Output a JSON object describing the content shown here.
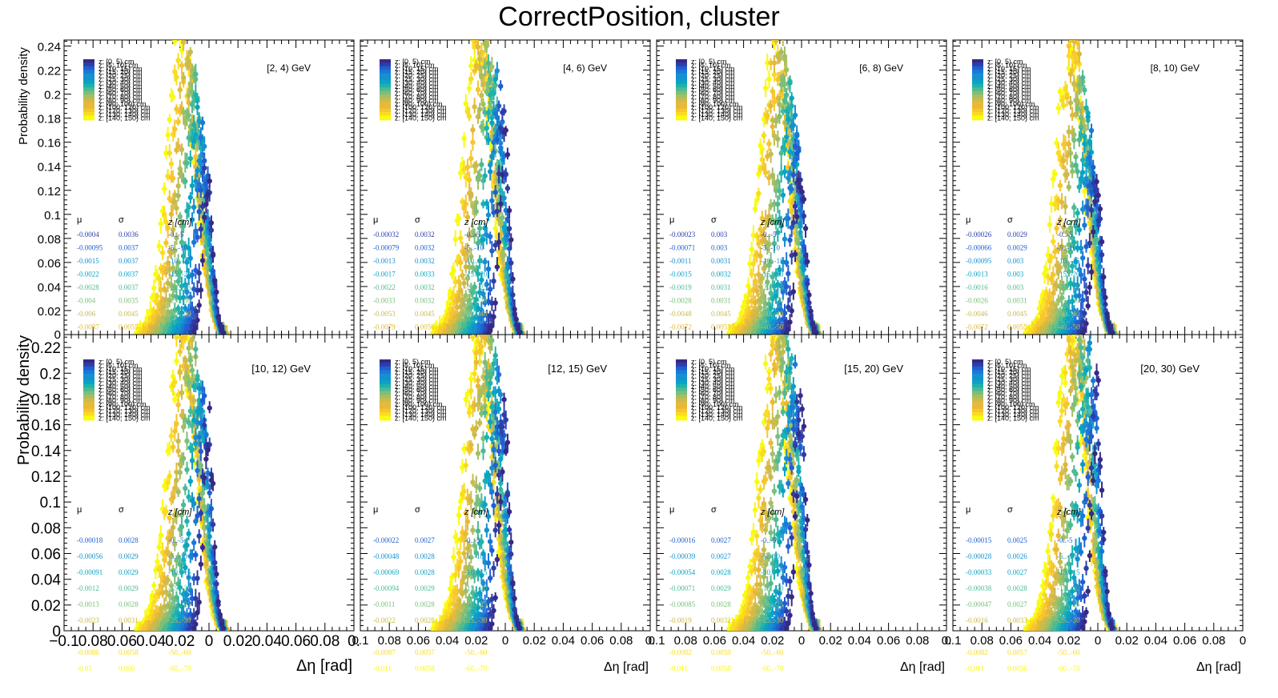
{
  "title": "CorrectPosition, cluster",
  "colors": {
    "palette": [
      "#352a87",
      "#2d3ea8",
      "#1f5fd0",
      "#1a78d8",
      "#1590d0",
      "#0aa4c3",
      "#1fb2ad",
      "#4dba93",
      "#7bbf7a",
      "#a5be63",
      "#c9bb4c",
      "#e5b93a",
      "#f6c62c",
      "#fadc1f",
      "#f9fb0e"
    ]
  },
  "legend": {
    "prefix": "z: ",
    "bins": [
      "[0, 5) cm",
      "[5, 10) cm",
      "[10, 15) cm",
      "[15, 20) cm",
      "[20, 25) cm",
      "[25, 30) cm",
      "[30, 40) cm",
      "[40, 50) cm",
      "[50, 60) cm",
      "[60, 70) cm",
      "[70, 80) cm",
      "[80, 90) cm",
      "[90, 100) cm",
      "[100, 120) cm",
      "[120, 130) cm",
      "[130, 140) cm",
      "[140, 150) cm"
    ]
  },
  "stats_header": {
    "mu": "μ",
    "sigma": "σ",
    "z": "z [cm]"
  },
  "chart_data": [
    {
      "type": "scatter",
      "energy": "[2, 4) GeV",
      "ylabel": "Probability density",
      "xlabel": "",
      "ylim": [
        0,
        0.245
      ],
      "yticks": [
        "0",
        "0.02",
        "0.04",
        "0.06",
        "0.08",
        "0.1",
        "0.12",
        "0.14",
        "0.16",
        "0.18",
        "0.2",
        "0.22",
        "0.24"
      ],
      "xlim": [
        -0.1,
        0.1
      ],
      "peak_x": -0.0004,
      "peak_y": 0.125,
      "max_y": 0.245,
      "stats": {
        "mu": [
          "-0.0004",
          "-0.00095",
          "-0.0015",
          "-0.0022",
          "-0.0028",
          "-0.004",
          "-0.006",
          "-0.0087"
        ],
        "sigma": [
          "0.0036",
          "0.0037",
          "0.0037",
          "0.0037",
          "0.0037",
          "0.0035",
          "0.0045",
          "0.0055"
        ],
        "z": [
          "-0..-5",
          "-5..-10",
          "-10..-15",
          "-15..-20",
          "-20..-25",
          "-25..-30",
          "-30..-40",
          ""
        ]
      }
    },
    {
      "type": "scatter",
      "energy": "[4, 6) GeV",
      "ylabel": "",
      "xlabel": "",
      "ylim": [
        0,
        0.245
      ],
      "xlim": [
        -0.1,
        0.1
      ],
      "peak_x": -0.00032,
      "peak_y": 0.17,
      "max_y": 0.245,
      "stats": {
        "mu": [
          "-0.00032",
          "-0.00079",
          "-0.0013",
          "-0.0017",
          "-0.0022",
          "-0.0033",
          "-0.0053",
          "-0.0079"
        ],
        "sigma": [
          "0.0032",
          "0.0032",
          "0.0032",
          "0.0033",
          "0.0032",
          "0.0032",
          "0.0045",
          "0.0056"
        ],
        "z": [
          "-0..-5",
          "-5..-10",
          "-10..-15",
          "-15..-20",
          "-20..-25",
          "-25..-30",
          "-30..-40",
          ""
        ]
      }
    },
    {
      "type": "scatter",
      "energy": "[6, 8) GeV",
      "ylabel": "",
      "xlabel": "",
      "ylim": [
        0,
        0.245
      ],
      "xlim": [
        -0.1,
        0.1
      ],
      "peak_x": -0.00023,
      "peak_y": 0.135,
      "max_y": 0.245,
      "stats": {
        "mu": [
          "-0.00023",
          "-0.00071",
          "-0.0011",
          "-0.0015",
          "-0.0019",
          "-0.0028",
          "-0.0048",
          "-0.0072"
        ],
        "sigma": [
          "0.003",
          "0.003",
          "0.0031",
          "0.0032",
          "0.0031",
          "0.0031",
          "0.0045",
          "0.0053"
        ],
        "z": [
          "-0..-5",
          "-5..-10",
          "-10..-15",
          "-15..-20",
          "-20..-25",
          "-25..-30",
          "-30..-40",
          "-40..-50"
        ]
      }
    },
    {
      "type": "scatter",
      "energy": "[8, 10) GeV",
      "ylabel": "",
      "xlabel": "",
      "ylim": [
        0,
        0.245
      ],
      "xlim": [
        -0.1,
        0.1
      ],
      "peak_x": -0.00026,
      "peak_y": 0.12,
      "max_y": 0.245,
      "stats": {
        "mu": [
          "-0.00026",
          "-0.00066",
          "-0.00095",
          "-0.0013",
          "-0.0016",
          "-0.0026",
          "-0.0046",
          "-0.0072"
        ],
        "sigma": [
          "0.0029",
          "0.0029",
          "0.003",
          "0.003",
          "0.003",
          "0.0031",
          "0.0045",
          "0.0055"
        ],
        "z": [
          "-0..-5",
          "-5..-10",
          "-10..-15",
          "-15..-20",
          "-20..-25",
          "-25..-30",
          "-30..-40",
          "-40..-50"
        ]
      }
    },
    {
      "type": "scatter",
      "energy": "[10, 12) GeV",
      "ylabel": "Probability density",
      "xlabel": "Δη  [rad]",
      "ylim": [
        0,
        0.23
      ],
      "yticks": [
        "0",
        "0.02",
        "0.04",
        "0.06",
        "0.08",
        "0.1",
        "0.12",
        "0.14",
        "0.16",
        "0.18",
        "0.2",
        "0.22"
      ],
      "xlim": [
        -0.1,
        0.1
      ],
      "xticks": [
        "−0.1",
        "0.08",
        "0.06",
        "0.04",
        "0.02",
        "0",
        "0.02",
        "0.04",
        "0.06",
        "0.08",
        "0."
      ],
      "peak_x": -0.00018,
      "peak_y": 0.155,
      "max_y": 0.23,
      "stats": {
        "mu": [
          "",
          "-0.00018",
          "-0.00056",
          "-0.00091",
          "-0.0012",
          "-0.0013",
          "-0.0023",
          "",
          "-0.0086",
          "-0.01"
        ],
        "sigma": [
          "",
          "0.0028",
          "0.0029",
          "0.0029",
          "0.0029",
          "0.0028",
          "0.0031",
          "",
          "0.0058",
          "0.006"
        ],
        "z": [
          "",
          "-0..-5",
          "-5..-10",
          "-10..-15",
          "-15..-20",
          "-20..-25",
          "-25..-30",
          "",
          "-50..-60",
          "-60..-70"
        ]
      }
    },
    {
      "type": "scatter",
      "energy": "[12, 15) GeV",
      "ylabel": "",
      "xlabel": "Δη  [rad]",
      "ylim": [
        0,
        0.23
      ],
      "xlim": [
        -0.1,
        0.1
      ],
      "xticks": [
        "0.1",
        "0.08",
        "0.06",
        "0.04",
        "0.02",
        "0",
        "0.02",
        "0.04",
        "0.06",
        "0.08",
        "0."
      ],
      "peak_x": -0.00022,
      "peak_y": 0.163,
      "max_y": 0.23,
      "stats": {
        "mu": [
          "",
          "-0.00022",
          "-0.00048",
          "-0.00069",
          "-0.00094",
          "-0.0011",
          "-0.0022",
          "",
          "-0.0087",
          "-0.011"
        ],
        "sigma": [
          "",
          "0.0027",
          "0.0028",
          "0.0028",
          "0.0029",
          "0.0028",
          "0.0028",
          "",
          "0.0057",
          "0.0058"
        ],
        "z": [
          "",
          "-0..-5",
          "-5..-10",
          "-10..-15",
          "-15..-20",
          "-20..-25",
          "-25..-30",
          "",
          "-50..-60",
          "-60..-70"
        ]
      }
    },
    {
      "type": "scatter",
      "energy": "[15, 20) GeV",
      "ylabel": "",
      "xlabel": "Δη  [rad]",
      "ylim": [
        0,
        0.23
      ],
      "xlim": [
        -0.1,
        0.1
      ],
      "xticks": [
        "0.1",
        "0.08",
        "0.06",
        "0.04",
        "0.02",
        "0",
        "0.02",
        "0.04",
        "0.06",
        "0.08",
        "0."
      ],
      "peak_x": -0.00016,
      "peak_y": 0.17,
      "max_y": 0.23,
      "stats": {
        "mu": [
          "",
          "-0.00016",
          "-0.00039",
          "-0.00054",
          "-0.00071",
          "-0.00085",
          "-0.0019",
          "",
          "-0.0082",
          "-0.011"
        ],
        "sigma": [
          "",
          "0.0027",
          "0.0027",
          "0.0028",
          "0.0029",
          "0.0028",
          "0.0032",
          "",
          "0.0059",
          "0.0058"
        ],
        "z": [
          "",
          "-0..-5",
          "-5..-10",
          "-10..-15",
          "-15..-20",
          "-20..-25",
          "-25..-30",
          "",
          "-50..-60",
          "-60..-70"
        ]
      }
    },
    {
      "type": "scatter",
      "energy": "[20, 30) GeV",
      "ylabel": "",
      "xlabel": "Δη  [rad]",
      "ylim": [
        0,
        0.23
      ],
      "xlim": [
        -0.1,
        0.1
      ],
      "xticks": [
        "0.1",
        "0.08",
        "0.06",
        "0.04",
        "0.02",
        "0",
        "0.02",
        "0.04",
        "0.06",
        "0.08",
        "0"
      ],
      "peak_x": -0.00015,
      "peak_y": 0.18,
      "max_y": 0.23,
      "stats": {
        "mu": [
          "",
          "-0.00015",
          "-0.00028",
          "-0.00033",
          "-0.00038",
          "-0.00047",
          "-0.0016",
          "",
          "-0.0082",
          "-0.011"
        ],
        "sigma": [
          "",
          "0.0025",
          "0.0026",
          "0.0027",
          "0.0028",
          "0.0027",
          "0.0033",
          "",
          "0.0057",
          "0.0056"
        ],
        "z": [
          "",
          "-0..-5",
          "-5..-10",
          "-10..-15",
          "-15..-20",
          "-20..-25",
          "-25..-30",
          "",
          "-50..-60",
          "-60..-70"
        ]
      }
    }
  ]
}
